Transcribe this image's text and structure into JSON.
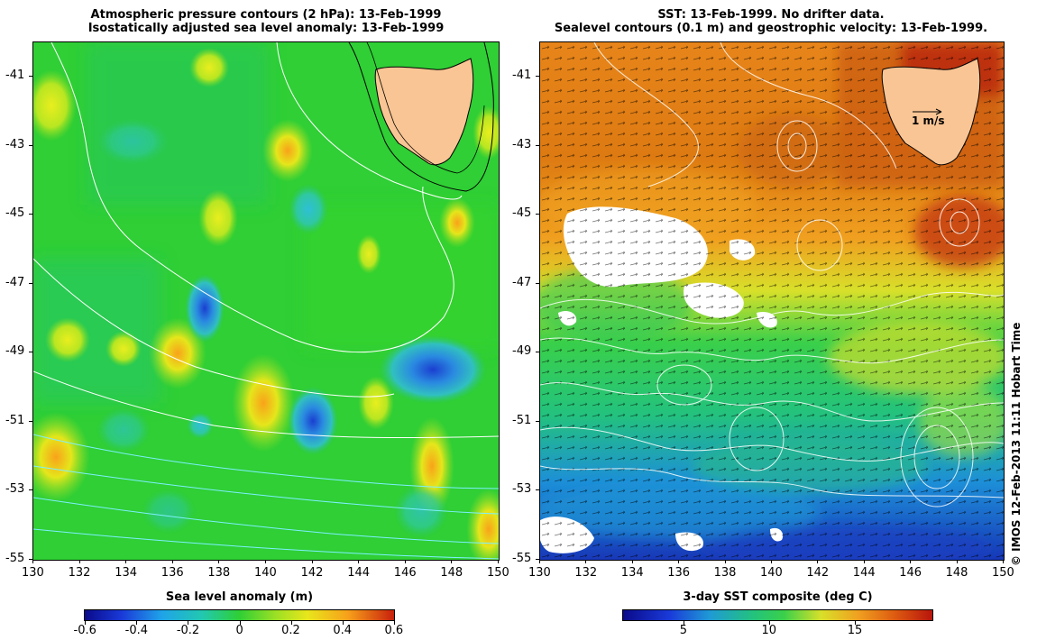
{
  "left_panel": {
    "title_line1": "Atmospheric pressure contours (2 hPa): 13-Feb-1999",
    "title_line2": "Isostatically adjusted sea level anomaly: 13-Feb-1999",
    "y_ticks": [
      "-41",
      "-43",
      "-45",
      "-47",
      "-49",
      "-51",
      "-53",
      "-55"
    ],
    "x_ticks": [
      "130",
      "132",
      "134",
      "136",
      "138",
      "140",
      "142",
      "144",
      "146",
      "148",
      "150"
    ],
    "colorbar": {
      "title": "Sea level anomaly (m)",
      "ticks": [
        "-0.6",
        "-0.4",
        "-0.2",
        "0",
        "0.2",
        "0.4",
        "0.6"
      ],
      "range": [
        -0.6,
        0.6
      ]
    }
  },
  "right_panel": {
    "title_line1": "SST: 13-Feb-1999. No drifter data.",
    "title_line2": "Sealevel contours (0.1 m) and geostrophic velocity: 13-Feb-1999.",
    "y_ticks": [
      "-41",
      "-43",
      "-45",
      "-47",
      "-49",
      "-51",
      "-53",
      "-55"
    ],
    "x_ticks": [
      "130",
      "132",
      "134",
      "136",
      "138",
      "140",
      "142",
      "144",
      "146",
      "148",
      "150"
    ],
    "velocity_scale_label": "1 m/s",
    "colorbar": {
      "title": "3-day SST composite (deg C)",
      "ticks": [
        "5",
        "10",
        "15"
      ],
      "tick_values": [
        5,
        10,
        15
      ],
      "range": [
        1.5,
        19.5
      ]
    }
  },
  "map_extent": {
    "lon": [
      130,
      150
    ],
    "lat": [
      -55,
      -40
    ]
  },
  "credit": "© IMOS 12-Feb-2013 11:11 Hobart Time",
  "colors": {
    "land": "#f9c594",
    "sla_background": "#2dcf2a",
    "sst_warm": "#e07a10",
    "sst_cold": "#1f7fd8"
  }
}
